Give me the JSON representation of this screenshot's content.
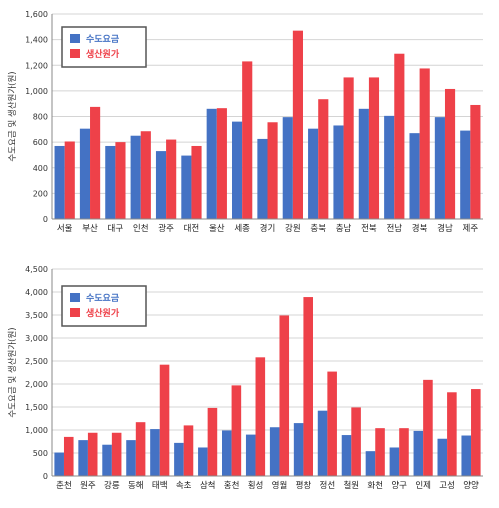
{
  "chart_data": [
    {
      "type": "bar",
      "title": "",
      "xlabel": "",
      "ylabel": "수도요금 및 생산원가(원)",
      "ylim": [
        0,
        1600
      ],
      "yticks": [
        "0",
        "200",
        "400",
        "600",
        "800",
        "1,000",
        "1,200",
        "1,400",
        "1,600"
      ],
      "grid": true,
      "legend_position": "top-left",
      "categories": [
        "서울",
        "부산",
        "대구",
        "인천",
        "광주",
        "대전",
        "울산",
        "세종",
        "경기",
        "강원",
        "충북",
        "충남",
        "전북",
        "전남",
        "경북",
        "경남",
        "제주"
      ],
      "series": [
        {
          "name": "수도요금",
          "color": "#4472c4",
          "values": [
            570,
            705,
            570,
            650,
            530,
            495,
            860,
            760,
            625,
            795,
            705,
            730,
            860,
            805,
            670,
            795,
            690
          ]
        },
        {
          "name": "생산원가",
          "color": "#ee4149",
          "values": [
            605,
            875,
            600,
            685,
            620,
            570,
            865,
            1230,
            755,
            1470,
            935,
            1105,
            1105,
            1290,
            1175,
            1015,
            890
          ]
        }
      ]
    },
    {
      "type": "bar",
      "title": "",
      "xlabel": "",
      "ylabel": "수도요금 및 생산원가(원)",
      "ylim": [
        0,
        4500
      ],
      "yticks": [
        "0",
        "500",
        "1,000",
        "1,500",
        "2,000",
        "2,500",
        "3,000",
        "3,500",
        "4,000",
        "4,500"
      ],
      "grid": true,
      "legend_position": "top-left",
      "categories": [
        "춘천",
        "원주",
        "강릉",
        "동해",
        "태백",
        "속초",
        "삼척",
        "홍천",
        "횡성",
        "영월",
        "평창",
        "정선",
        "철원",
        "화천",
        "양구",
        "인제",
        "고성",
        "양양"
      ],
      "series": [
        {
          "name": "수도요금",
          "color": "#4472c4",
          "values": [
            510,
            780,
            680,
            780,
            1020,
            720,
            620,
            990,
            900,
            1060,
            1150,
            1420,
            890,
            540,
            620,
            980,
            810,
            880
          ]
        },
        {
          "name": "생산원가",
          "color": "#ee4149",
          "values": [
            850,
            940,
            940,
            1170,
            2420,
            1100,
            1480,
            1970,
            2580,
            3490,
            3890,
            2270,
            1490,
            1040,
            1040,
            2090,
            1820,
            1890
          ]
        }
      ]
    }
  ]
}
